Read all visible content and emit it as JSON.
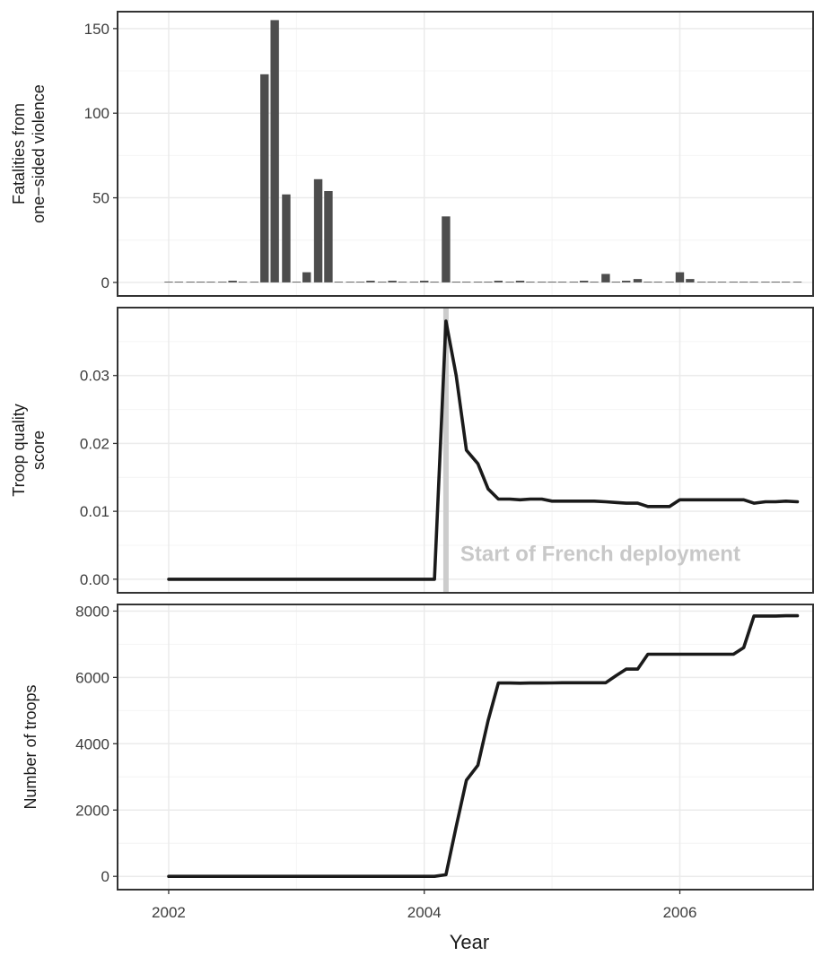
{
  "colors": {
    "bar": "#4d4d4d",
    "line": "#1a1a1a",
    "grid_major": "#ebebeb",
    "grid_minor": "#f4f4f4",
    "annotation": "#cccccc",
    "frame": "#333333"
  },
  "x_axis": {
    "title": "Year",
    "ticks": [
      2002,
      2004,
      2006
    ],
    "tick_labels": [
      "2002",
      "2004",
      "2006"
    ],
    "range": [
      2001.6,
      2007.05
    ]
  },
  "chart_data": [
    {
      "type": "bar",
      "ylabel_lines": [
        "Fatalities from",
        "one−sided violence"
      ],
      "ylim": [
        -8,
        160
      ],
      "yticks": [
        0,
        50,
        100,
        150
      ],
      "ytick_labels": [
        "0",
        "50",
        "100",
        "150"
      ],
      "grid": true,
      "bar_width_years": 0.066,
      "x": [
        2002.0,
        2002.08,
        2002.17,
        2002.25,
        2002.33,
        2002.42,
        2002.5,
        2002.58,
        2002.67,
        2002.75,
        2002.83,
        2002.92,
        2003.0,
        2003.08,
        2003.17,
        2003.25,
        2003.33,
        2003.42,
        2003.5,
        2003.58,
        2003.67,
        2003.75,
        2003.83,
        2003.92,
        2004.0,
        2004.08,
        2004.17,
        2004.25,
        2004.33,
        2004.42,
        2004.5,
        2004.58,
        2004.67,
        2004.75,
        2004.83,
        2004.92,
        2005.0,
        2005.08,
        2005.17,
        2005.25,
        2005.33,
        2005.42,
        2005.5,
        2005.58,
        2005.67,
        2005.75,
        2005.83,
        2005.92,
        2006.0,
        2006.08,
        2006.17,
        2006.25,
        2006.33,
        2006.42,
        2006.5,
        2006.58,
        2006.67,
        2006.75,
        2006.83,
        2006.92
      ],
      "values": [
        0,
        0,
        0,
        0,
        0,
        0,
        1,
        0,
        0,
        123,
        155,
        52,
        0,
        6,
        61,
        54,
        0,
        0,
        0,
        1,
        0,
        1,
        0,
        0,
        1,
        0,
        39,
        0,
        0,
        0,
        0,
        1,
        0,
        1,
        0,
        0,
        0,
        0,
        0,
        1,
        0,
        5,
        0,
        1,
        2,
        0,
        0,
        0,
        6,
        2,
        0,
        0,
        0,
        0,
        0,
        0,
        0,
        0,
        0,
        0
      ]
    },
    {
      "type": "line",
      "ylabel_lines": [
        "Troop quality",
        "score"
      ],
      "ylim": [
        -0.002,
        0.04
      ],
      "yticks": [
        0.0,
        0.01,
        0.02,
        0.03
      ],
      "ytick_labels": [
        "0.00",
        "0.01",
        "0.02",
        "0.03"
      ],
      "grid": true,
      "annotation": {
        "x": 2004.17,
        "y": 0.0027,
        "text": "Start of French deployment"
      },
      "points": [
        [
          2002.0,
          0.0
        ],
        [
          2003.0,
          0.0
        ],
        [
          2004.08,
          0.0
        ],
        [
          2004.17,
          0.038
        ],
        [
          2004.25,
          0.03
        ],
        [
          2004.33,
          0.019
        ],
        [
          2004.42,
          0.017
        ],
        [
          2004.5,
          0.0133
        ],
        [
          2004.58,
          0.0118
        ],
        [
          2004.67,
          0.0118
        ],
        [
          2004.75,
          0.0117
        ],
        [
          2004.83,
          0.0118
        ],
        [
          2004.92,
          0.0118
        ],
        [
          2005.0,
          0.0115
        ],
        [
          2005.08,
          0.0115
        ],
        [
          2005.17,
          0.0115
        ],
        [
          2005.25,
          0.0115
        ],
        [
          2005.33,
          0.0115
        ],
        [
          2005.42,
          0.0114
        ],
        [
          2005.5,
          0.0113
        ],
        [
          2005.58,
          0.0112
        ],
        [
          2005.67,
          0.0112
        ],
        [
          2005.75,
          0.0107
        ],
        [
          2005.83,
          0.0107
        ],
        [
          2005.92,
          0.0107
        ],
        [
          2006.0,
          0.0117
        ],
        [
          2006.08,
          0.0117
        ],
        [
          2006.17,
          0.0117
        ],
        [
          2006.25,
          0.0117
        ],
        [
          2006.33,
          0.0117
        ],
        [
          2006.42,
          0.0117
        ],
        [
          2006.5,
          0.0117
        ],
        [
          2006.58,
          0.0112
        ],
        [
          2006.67,
          0.0114
        ],
        [
          2006.75,
          0.0114
        ],
        [
          2006.83,
          0.0115
        ],
        [
          2006.92,
          0.0114
        ]
      ]
    },
    {
      "type": "line",
      "ylabel_lines": [
        "Number of troops"
      ],
      "ylim": [
        -400,
        8200
      ],
      "yticks": [
        0,
        2000,
        4000,
        6000,
        8000
      ],
      "ytick_labels": [
        "0",
        "2000",
        "4000",
        "6000",
        "8000"
      ],
      "grid": true,
      "points": [
        [
          2002.0,
          0
        ],
        [
          2003.0,
          0
        ],
        [
          2004.08,
          0
        ],
        [
          2004.17,
          50
        ],
        [
          2004.25,
          1500
        ],
        [
          2004.33,
          2900
        ],
        [
          2004.42,
          3350
        ],
        [
          2004.5,
          4700
        ],
        [
          2004.58,
          5830
        ],
        [
          2004.67,
          5830
        ],
        [
          2004.75,
          5825
        ],
        [
          2004.83,
          5830
        ],
        [
          2004.92,
          5830
        ],
        [
          2005.0,
          5835
        ],
        [
          2005.08,
          5840
        ],
        [
          2005.17,
          5840
        ],
        [
          2005.25,
          5840
        ],
        [
          2005.33,
          5840
        ],
        [
          2005.42,
          5840
        ],
        [
          2005.5,
          6050
        ],
        [
          2005.58,
          6250
        ],
        [
          2005.67,
          6250
        ],
        [
          2005.75,
          6700
        ],
        [
          2005.83,
          6700
        ],
        [
          2005.92,
          6700
        ],
        [
          2006.0,
          6700
        ],
        [
          2006.08,
          6700
        ],
        [
          2006.17,
          6700
        ],
        [
          2006.25,
          6700
        ],
        [
          2006.33,
          6700
        ],
        [
          2006.42,
          6700
        ],
        [
          2006.5,
          6900
        ],
        [
          2006.58,
          7850
        ],
        [
          2006.67,
          7850
        ],
        [
          2006.75,
          7850
        ],
        [
          2006.83,
          7860
        ],
        [
          2006.92,
          7860
        ]
      ]
    }
  ]
}
